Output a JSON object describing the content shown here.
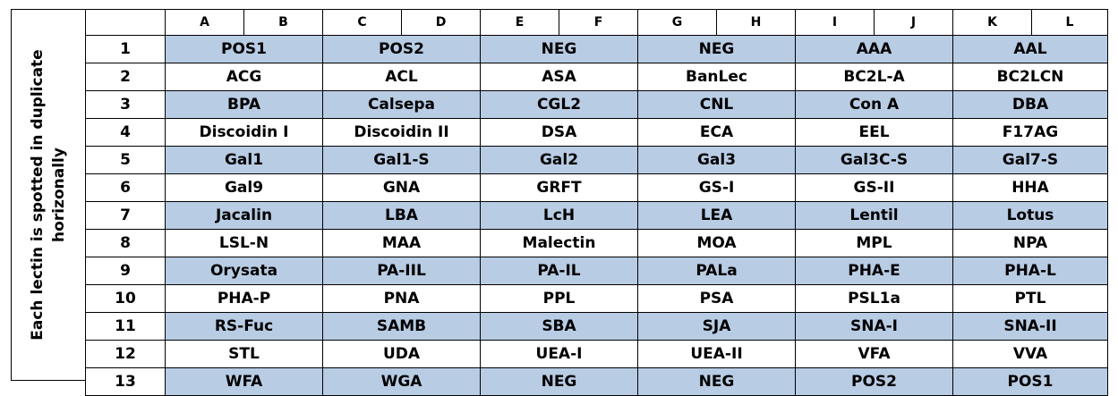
{
  "side_label_line1": "Each lectin is spotted in duplicate",
  "side_label_line2": "horizonally",
  "columns": [
    "A",
    "B",
    "C",
    "D",
    "E",
    "F",
    "G",
    "H",
    "I",
    "J",
    "K",
    "L"
  ],
  "rows": [
    {
      "num": "1",
      "cells": [
        "POS1",
        "POS2",
        "NEG",
        "NEG",
        "AAA",
        "AAL"
      ]
    },
    {
      "num": "2",
      "cells": [
        "ACG",
        "ACL",
        "ASA",
        "BanLec",
        "BC2L-A",
        "BC2LCN"
      ]
    },
    {
      "num": "3",
      "cells": [
        "BPA",
        "Calsepa",
        "CGL2",
        "CNL",
        "Con A",
        "DBA"
      ]
    },
    {
      "num": "4",
      "cells": [
        "Discoidin I",
        "Discoidin II",
        "DSA",
        "ECA",
        "EEL",
        "F17AG"
      ]
    },
    {
      "num": "5",
      "cells": [
        "Gal1",
        "Gal1-S",
        "Gal2",
        "Gal3",
        "Gal3C-S",
        "Gal7-S"
      ]
    },
    {
      "num": "6",
      "cells": [
        "Gal9",
        "GNA",
        "GRFT",
        "GS-I",
        "GS-II",
        "HHA"
      ]
    },
    {
      "num": "7",
      "cells": [
        "Jacalin",
        "LBA",
        "LcH",
        "LEA",
        "Lentil",
        "Lotus"
      ]
    },
    {
      "num": "8",
      "cells": [
        "LSL-N",
        "MAA",
        "Malectin",
        "MOA",
        "MPL",
        "NPA"
      ]
    },
    {
      "num": "9",
      "cells": [
        "Orysata",
        "PA-IIL",
        "PA-IL",
        "PALa",
        "PHA-E",
        "PHA-L"
      ]
    },
    {
      "num": "10",
      "cells": [
        "PHA-P",
        "PNA",
        "PPL",
        "PSA",
        "PSL1a",
        "PTL"
      ]
    },
    {
      "num": "11",
      "cells": [
        "RS-Fuc",
        "SAMB",
        "SBA",
        "SJA",
        "SNA-I",
        "SNA-II"
      ]
    },
    {
      "num": "12",
      "cells": [
        "STL",
        "UDA",
        "UEA-I",
        "UEA-II",
        "VFA",
        "VVA"
      ]
    },
    {
      "num": "13",
      "cells": [
        "WFA",
        "WGA",
        "NEG",
        "NEG",
        "POS2",
        "POS1"
      ]
    }
  ],
  "colors": {
    "shaded_row": "#b8cce4",
    "border": "#000000"
  }
}
